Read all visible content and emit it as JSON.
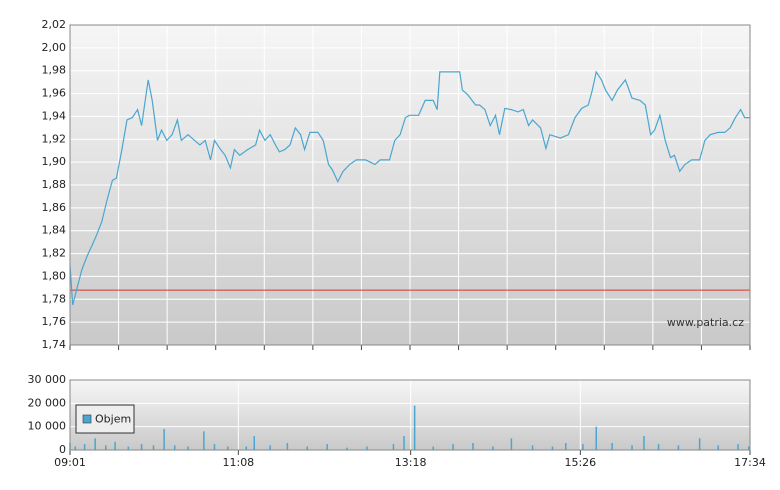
{
  "chart_data": [
    {
      "type": "line",
      "xlim": [
        "09:01",
        "17:34"
      ],
      "ylim": [
        1.74,
        2.02
      ],
      "yticks": [
        {
          "value": 1.74,
          "label": "1,74"
        },
        {
          "value": 1.76,
          "label": "1,76"
        },
        {
          "value": 1.78,
          "label": "1,78"
        },
        {
          "value": 1.8,
          "label": "1,80"
        },
        {
          "value": 1.82,
          "label": "1,82"
        },
        {
          "value": 1.84,
          "label": "1,84"
        },
        {
          "value": 1.86,
          "label": "1,86"
        },
        {
          "value": 1.88,
          "label": "1,88"
        },
        {
          "value": 1.9,
          "label": "1,90"
        },
        {
          "value": 1.92,
          "label": "1,92"
        },
        {
          "value": 1.94,
          "label": "1,94"
        },
        {
          "value": 1.96,
          "label": "1,96"
        },
        {
          "value": 1.98,
          "label": "1,98"
        },
        {
          "value": 2.0,
          "label": "2,00"
        },
        {
          "value": 2.02,
          "label": "2,02"
        }
      ],
      "grid": true,
      "reference_line": {
        "value": 1.788,
        "color": "#d9352b"
      },
      "watermark": "www.patria.cz",
      "x": [
        "09:01",
        "09:03",
        "09:07",
        "09:10",
        "09:14",
        "09:18",
        "09:21",
        "09:25",
        "09:29",
        "09:33",
        "09:36",
        "09:40",
        "09:44",
        "09:48",
        "09:52",
        "09:55",
        "10:00",
        "10:03",
        "10:07",
        "10:10",
        "10:14",
        "10:18",
        "10:22",
        "10:25",
        "10:30",
        "10:35",
        "10:39",
        "10:43",
        "10:47",
        "10:50",
        "10:54",
        "10:58",
        "11:02",
        "11:05",
        "11:09",
        "11:15",
        "11:21",
        "11:24",
        "11:28",
        "11:32",
        "11:36",
        "11:39",
        "11:43",
        "11:47",
        "11:51",
        "11:55",
        "11:58",
        "12:02",
        "12:08",
        "12:12",
        "12:16",
        "12:19",
        "12:23",
        "12:27",
        "12:32",
        "12:37",
        "12:44",
        "12:51",
        "12:55",
        "13:02",
        "13:06",
        "13:10",
        "13:14",
        "13:17",
        "13:24",
        "13:29",
        "13:35",
        "13:38",
        "13:40",
        "13:48",
        "13:55",
        "13:57",
        "14:01",
        "14:07",
        "14:10",
        "14:14",
        "14:18",
        "14:22",
        "14:25",
        "14:29",
        "14:34",
        "14:39",
        "14:43",
        "14:47",
        "14:50",
        "14:56",
        "15:00",
        "15:03",
        "15:11",
        "15:17",
        "15:22",
        "15:27",
        "15:32",
        "15:35",
        "15:38",
        "15:42",
        "15:45",
        "15:50",
        "15:54",
        "16:00",
        "16:05",
        "16:11",
        "16:15",
        "16:19",
        "16:22",
        "16:26",
        "16:30",
        "16:34",
        "16:37",
        "16:41",
        "16:45",
        "16:50",
        "16:56",
        "17:00",
        "17:04",
        "17:10",
        "17:15",
        "17:19",
        "17:23",
        "17:27",
        "17:30",
        "17:34"
      ],
      "series": [
        {
          "color": "#4aa6d0",
          "values": [
            1.81,
            1.775,
            1.793,
            1.806,
            1.818,
            1.828,
            1.836,
            1.848,
            1.867,
            1.884,
            1.886,
            1.91,
            1.937,
            1.939,
            1.946,
            1.932,
            1.972,
            1.954,
            1.919,
            1.928,
            1.919,
            1.924,
            1.937,
            1.919,
            1.924,
            1.919,
            1.915,
            1.919,
            1.902,
            1.919,
            1.912,
            1.906,
            1.895,
            1.911,
            1.906,
            1.911,
            1.915,
            1.928,
            1.919,
            1.924,
            1.915,
            1.909,
            1.911,
            1.915,
            1.93,
            1.924,
            1.911,
            1.926,
            1.926,
            1.919,
            1.898,
            1.893,
            1.883,
            1.892,
            1.898,
            1.902,
            1.902,
            1.898,
            1.902,
            1.902,
            1.919,
            1.924,
            1.939,
            1.941,
            1.941,
            1.954,
            1.954,
            1.946,
            1.979,
            1.979,
            1.979,
            1.963,
            1.959,
            1.95,
            1.95,
            1.946,
            1.932,
            1.941,
            1.924,
            1.947,
            1.946,
            1.944,
            1.946,
            1.932,
            1.937,
            1.93,
            1.912,
            1.924,
            1.921,
            1.924,
            1.939,
            1.947,
            1.95,
            1.963,
            1.979,
            1.972,
            1.963,
            1.954,
            1.963,
            1.972,
            1.956,
            1.954,
            1.95,
            1.924,
            1.928,
            1.941,
            1.919,
            1.904,
            1.906,
            1.892,
            1.898,
            1.902,
            1.902,
            1.919,
            1.924,
            1.926,
            1.926,
            1.93,
            1.939,
            1.946,
            1.939,
            1.939
          ]
        }
      ]
    },
    {
      "type": "bar",
      "xlim": [
        "09:01",
        "17:34"
      ],
      "xticks": [
        "09:01",
        "11:08",
        "13:18",
        "15:26",
        "17:34"
      ],
      "ylim": [
        0,
        30000
      ],
      "yticks": [
        {
          "value": 0,
          "label": "0"
        },
        {
          "value": 10000,
          "label": "10 000"
        },
        {
          "value": 20000,
          "label": "20 000"
        },
        {
          "value": 30000,
          "label": "30 000"
        }
      ],
      "grid": true,
      "legend": "lower left",
      "x": [
        "09:01",
        "09:05",
        "09:12",
        "09:20",
        "09:28",
        "09:35",
        "09:45",
        "09:55",
        "10:04",
        "10:12",
        "10:20",
        "10:30",
        "10:42",
        "10:50",
        "11:00",
        "11:14",
        "11:20",
        "11:32",
        "11:45",
        "12:00",
        "12:15",
        "12:30",
        "12:45",
        "13:05",
        "13:13",
        "13:21",
        "13:35",
        "13:50",
        "14:05",
        "14:20",
        "14:34",
        "14:50",
        "15:05",
        "15:15",
        "15:28",
        "15:38",
        "15:50",
        "16:05",
        "16:14",
        "16:25",
        "16:40",
        "16:56",
        "17:10",
        "17:25",
        "17:33"
      ],
      "series": [
        {
          "name": "Objem",
          "color": "#4aa6d0",
          "values": [
            3000,
            1500,
            2500,
            5000,
            2000,
            3500,
            1500,
            2500,
            2000,
            9000,
            2000,
            1500,
            8000,
            2500,
            1500,
            1500,
            6000,
            2000,
            3000,
            1500,
            2500,
            1000,
            1500,
            2500,
            6000,
            19000,
            1500,
            2500,
            3000,
            1500,
            5000,
            2000,
            1500,
            3000,
            2500,
            10000,
            3000,
            2000,
            6000,
            2500,
            2000,
            5000,
            2000,
            2500,
            1500
          ]
        }
      ]
    }
  ]
}
